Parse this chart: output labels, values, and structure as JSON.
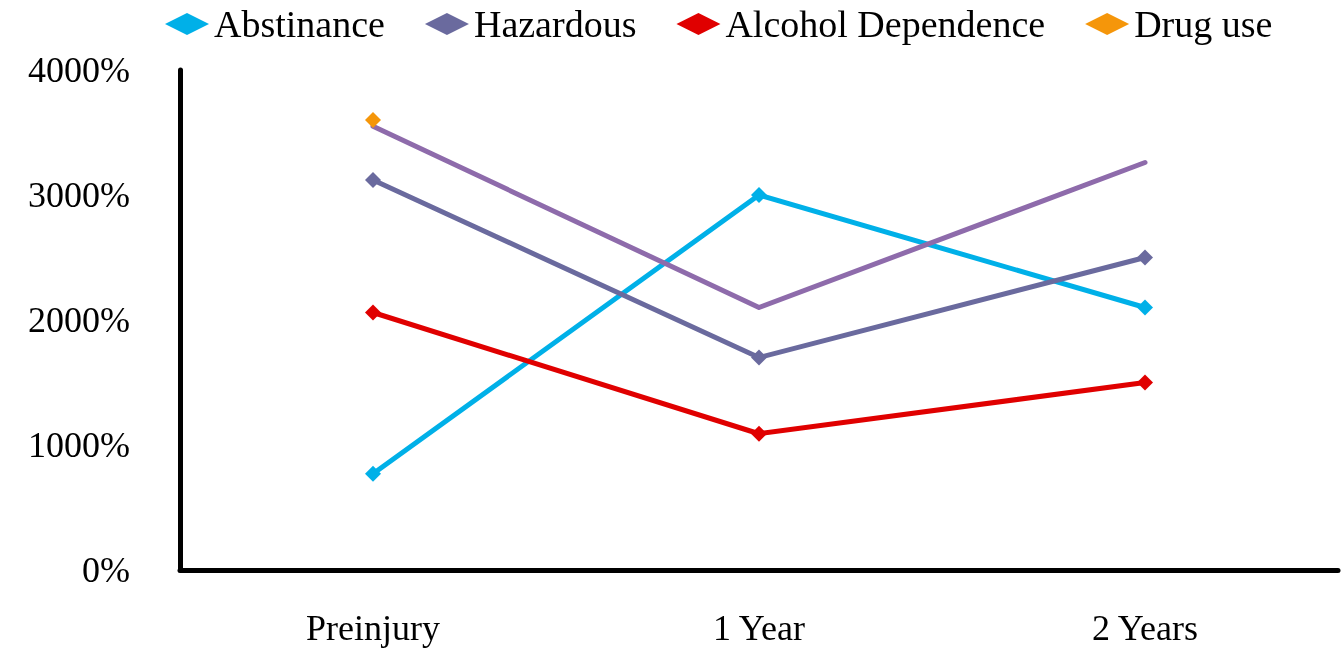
{
  "chart_data": {
    "type": "line",
    "categories": [
      "Preinjury",
      "1 Year",
      "2 Years"
    ],
    "ylim": [
      0,
      4000
    ],
    "yticks": [
      {
        "value": 0,
        "label": "0%"
      },
      {
        "value": 1000,
        "label": "1000%"
      },
      {
        "value": 2000,
        "label": "2000%"
      },
      {
        "value": 3000,
        "label": "3000%"
      },
      {
        "value": 4000,
        "label": "4000%"
      }
    ],
    "grid": false,
    "legend": "top",
    "marker": "diamond",
    "line_style": "solid",
    "series": [
      {
        "name": "Abstinance",
        "color": "#00b0e8",
        "values": [
          770,
          3000,
          2100
        ]
      },
      {
        "name": "Hazardous",
        "color": "#6a6a9e",
        "values": [
          3120,
          1700,
          2500
        ]
      },
      {
        "name": "Alcohol Dependence",
        "color": "#e00000",
        "values": [
          2060,
          1090,
          1500
        ]
      },
      {
        "name": "Drug use",
        "color": "#f5960a",
        "values": [
          3600,
          null,
          null
        ]
      },
      {
        "color": "#8e6bab",
        "values": [
          3550,
          2100,
          3260
        ],
        "marker": "none"
      }
    ]
  }
}
